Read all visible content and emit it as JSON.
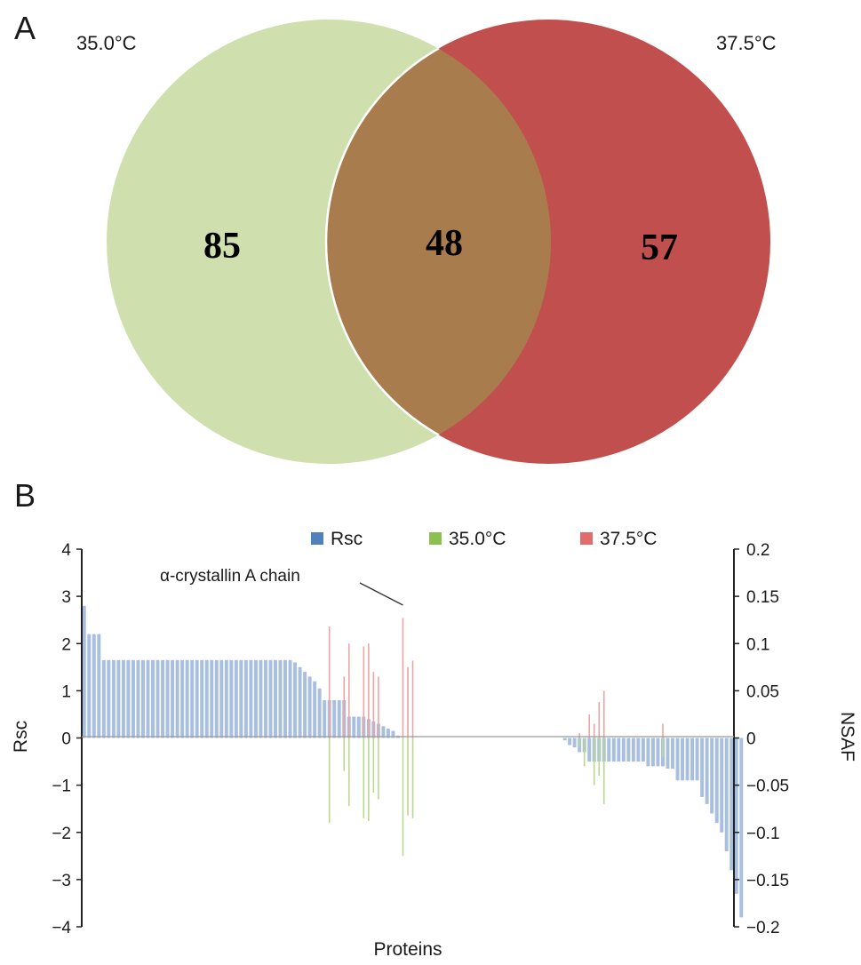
{
  "panel_a": {
    "label": "A",
    "left_set_label": "35.0°C",
    "right_set_label": "37.5°C",
    "left_only_count": "85",
    "overlap_count": "48",
    "right_only_count": "57",
    "colors": {
      "left": "#cfdfad",
      "right": "#c14f4d",
      "overlap": "#a97c4e",
      "outline": "#ffffff"
    }
  },
  "panel_b": {
    "label": "B"
  },
  "chart_data": {
    "type": "bar",
    "xlabel": "Proteins",
    "ylabel": "Rsc",
    "y2label": "NSAF",
    "ylim": [
      -4,
      4
    ],
    "y2lim": [
      -0.2,
      0.2
    ],
    "yticks": [
      "4",
      "3",
      "2",
      "1",
      "0",
      "−1",
      "−2",
      "−3",
      "−4"
    ],
    "y2ticks": [
      "0.2",
      "0.15",
      "0.1",
      "0.05",
      "0",
      "−0.05",
      "−0.1",
      "−0.15",
      "−0.2"
    ],
    "legend": [
      {
        "name": "Rsc",
        "color": "#4f81bd"
      },
      {
        "name": "35.0°C",
        "color": "#8cc152"
      },
      {
        "name": "37.5°C",
        "color": "#e06c6c"
      }
    ],
    "legend_position": "top",
    "annotation": {
      "text": "α-crystallin A chain",
      "protein_index": 65
    },
    "protein_count": 133,
    "series": [
      {
        "name": "Rsc",
        "axis": "left",
        "color": "#4f81bd",
        "values": [
          2.8,
          2.2,
          2.2,
          2.2,
          1.65,
          1.65,
          1.65,
          1.65,
          1.65,
          1.65,
          1.65,
          1.65,
          1.65,
          1.65,
          1.65,
          1.65,
          1.65,
          1.65,
          1.65,
          1.65,
          1.65,
          1.65,
          1.65,
          1.65,
          1.65,
          1.65,
          1.65,
          1.65,
          1.65,
          1.65,
          1.65,
          1.65,
          1.65,
          1.65,
          1.65,
          1.65,
          1.65,
          1.65,
          1.65,
          1.65,
          1.65,
          1.65,
          1.65,
          1.6,
          1.5,
          1.4,
          1.3,
          1.2,
          1.05,
          0.8,
          0.8,
          0.8,
          0.8,
          0.8,
          0.45,
          0.45,
          0.45,
          0.45,
          0.4,
          0.35,
          0.3,
          0.25,
          0.2,
          0.15,
          0.05,
          0,
          0,
          0,
          0,
          0,
          0,
          0,
          0,
          0,
          0,
          0,
          0,
          0,
          0,
          0,
          0,
          0,
          0,
          0,
          0,
          0,
          0,
          0,
          0,
          0,
          0,
          0,
          0,
          0,
          0,
          0,
          0,
          0,
          -0.05,
          -0.15,
          -0.2,
          -0.3,
          -0.3,
          -0.5,
          -0.5,
          -0.5,
          -0.5,
          -0.5,
          -0.5,
          -0.5,
          -0.5,
          -0.5,
          -0.5,
          -0.5,
          -0.5,
          -0.6,
          -0.6,
          -0.6,
          -0.6,
          -0.65,
          -0.65,
          -0.9,
          -0.9,
          -0.9,
          -0.9,
          -0.9,
          -1.25,
          -1.4,
          -1.6,
          -1.8,
          -2.0,
          -2.4,
          -2.8,
          -3.3,
          -3.8
        ]
      },
      {
        "name": "35.0°C",
        "axis": "right",
        "color": "#8cc152",
        "points": [
          {
            "index": 50,
            "value": -0.09
          },
          {
            "index": 53,
            "value": -0.035
          },
          {
            "index": 54,
            "value": -0.072
          },
          {
            "index": 57,
            "value": -0.085
          },
          {
            "index": 58,
            "value": -0.088
          },
          {
            "index": 59,
            "value": -0.058
          },
          {
            "index": 60,
            "value": -0.065
          },
          {
            "index": 65,
            "value": -0.125
          },
          {
            "index": 66,
            "value": -0.082
          },
          {
            "index": 67,
            "value": -0.085
          },
          {
            "index": 101,
            "value": -0.01
          },
          {
            "index": 102,
            "value": -0.03
          },
          {
            "index": 104,
            "value": -0.05
          },
          {
            "index": 105,
            "value": -0.04
          },
          {
            "index": 106,
            "value": -0.07
          },
          {
            "index": 118,
            "value": -0.02
          }
        ]
      },
      {
        "name": "37.5°C",
        "axis": "right",
        "color": "#e06c6c",
        "points": [
          {
            "index": 50,
            "value": 0.118
          },
          {
            "index": 53,
            "value": 0.065
          },
          {
            "index": 54,
            "value": 0.1
          },
          {
            "index": 57,
            "value": 0.097
          },
          {
            "index": 58,
            "value": 0.1
          },
          {
            "index": 59,
            "value": 0.07
          },
          {
            "index": 60,
            "value": 0.065
          },
          {
            "index": 65,
            "value": 0.127
          },
          {
            "index": 66,
            "value": 0.075
          },
          {
            "index": 67,
            "value": 0.082
          },
          {
            "index": 101,
            "value": 0.005
          },
          {
            "index": 103,
            "value": 0.025
          },
          {
            "index": 104,
            "value": 0.015
          },
          {
            "index": 105,
            "value": 0.038
          },
          {
            "index": 106,
            "value": 0.05
          },
          {
            "index": 118,
            "value": 0.015
          }
        ]
      }
    ]
  }
}
